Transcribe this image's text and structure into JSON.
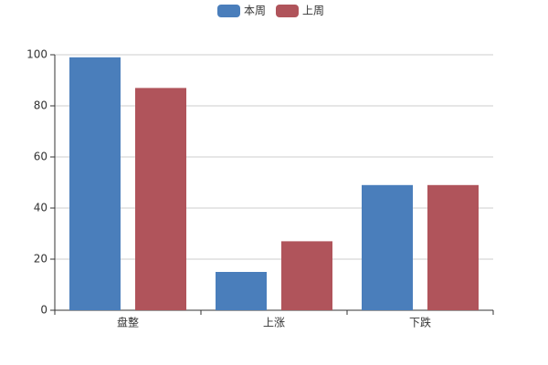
{
  "chart_data": {
    "type": "bar",
    "categories": [
      "盘整",
      "上涨",
      "下跌"
    ],
    "series": [
      {
        "name": "本周",
        "color": "#4a7ebb",
        "values": [
          99,
          15,
          49
        ]
      },
      {
        "name": "上周",
        "color": "#b0545b",
        "values": [
          87,
          27,
          49
        ]
      }
    ],
    "ylim": [
      0,
      100
    ],
    "yticks": [
      0,
      20,
      40,
      60,
      80,
      100
    ],
    "grid": true,
    "legend": "top"
  }
}
